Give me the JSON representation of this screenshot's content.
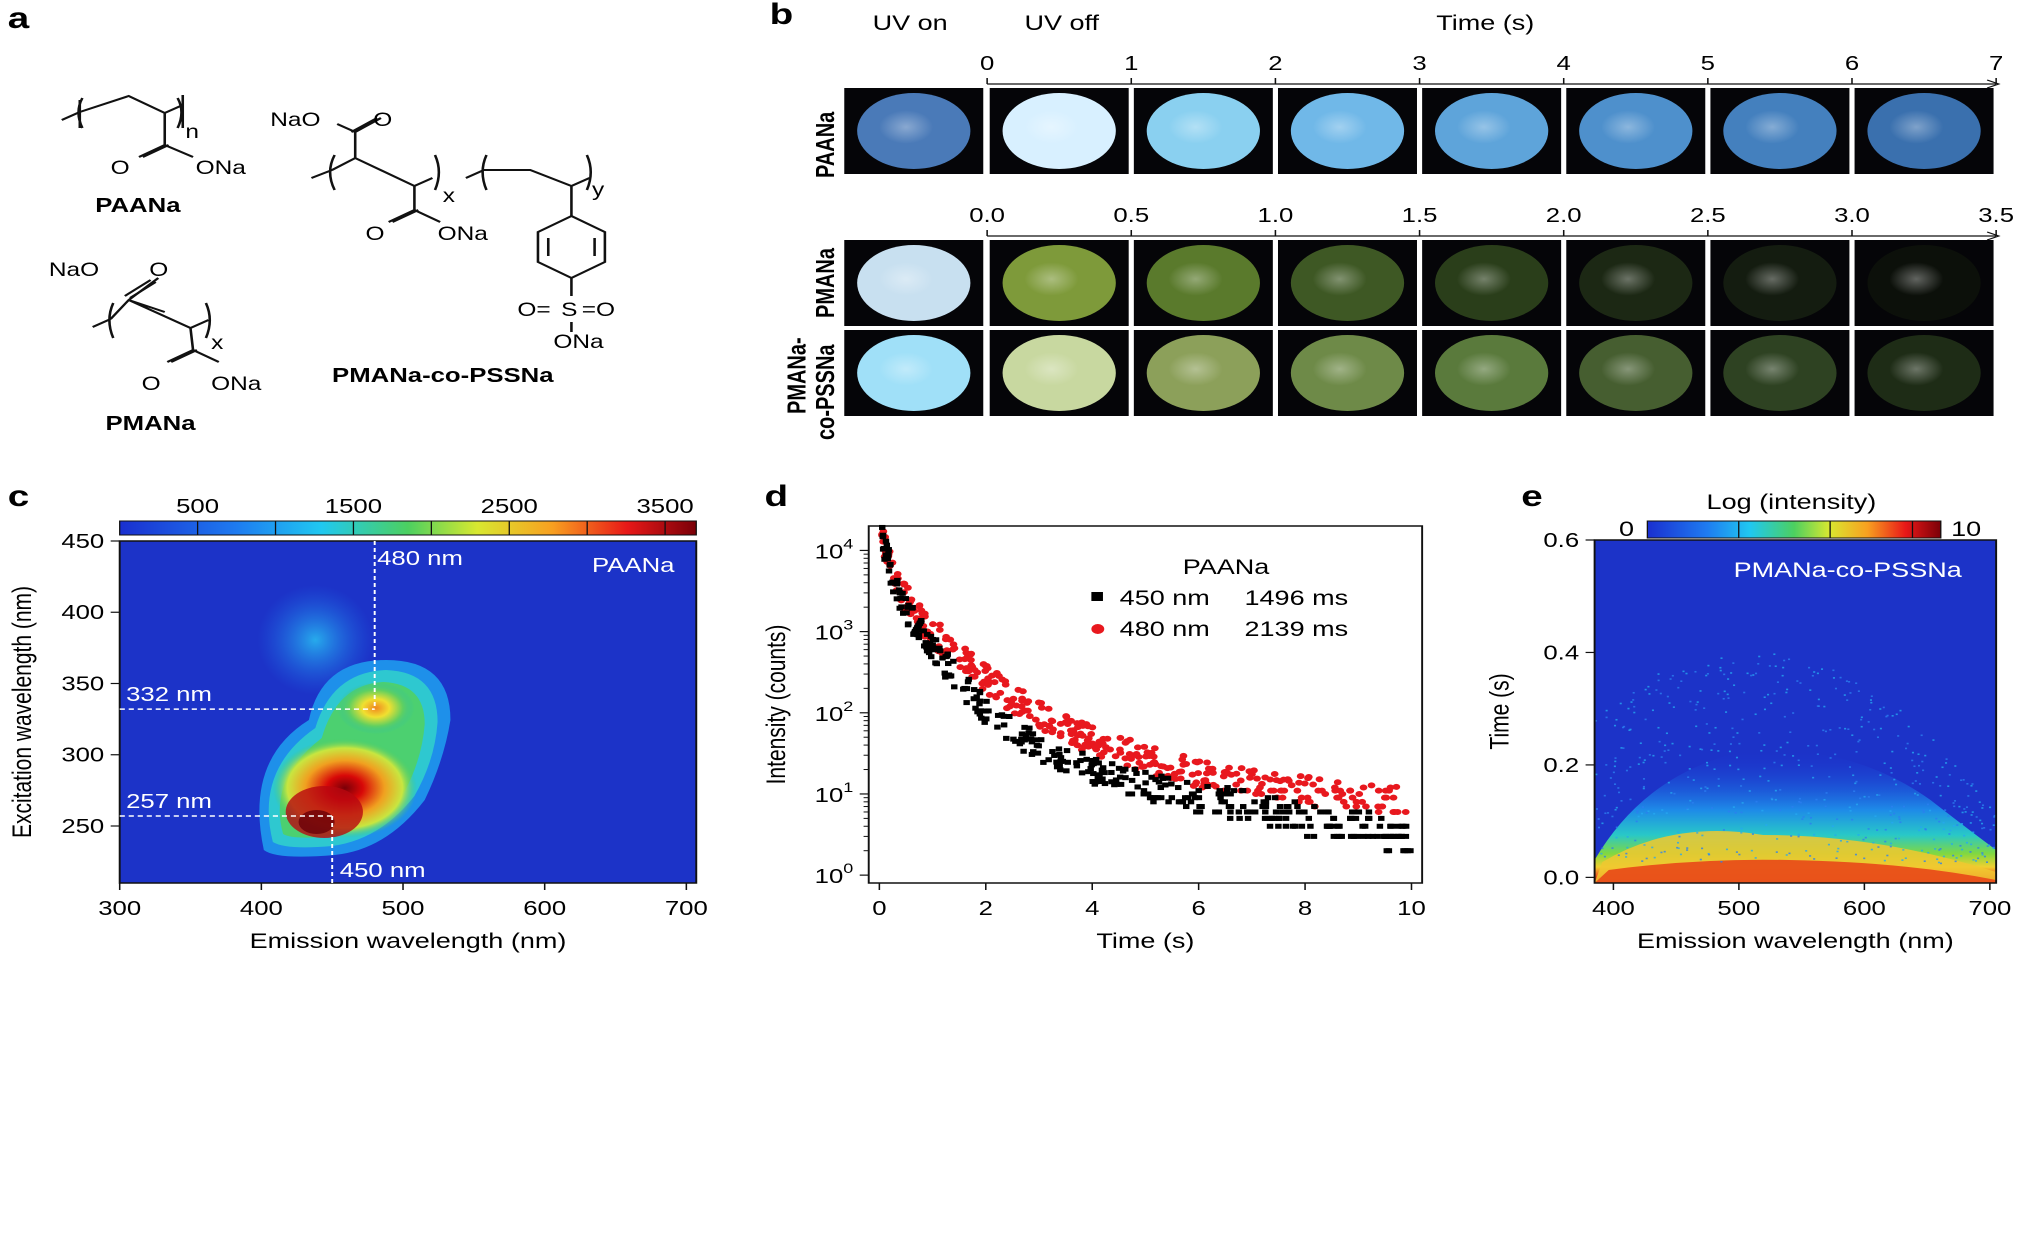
{
  "panels": {
    "a": {
      "letter": "a",
      "paana": {
        "name": "PAANa",
        "n": "n",
        "carboxy": "O",
        "na_ester": "ONa"
      },
      "pmana": {
        "name": "PMANa",
        "x": "x",
        "nao": "NaO",
        "o_top": "O",
        "o_bottom": "O",
        "ona": "ONa"
      },
      "copoly": {
        "name": "PMANa-co-PSSNa",
        "nao": "NaO",
        "o_top": "O",
        "o_low": "O",
        "ona": "ONa",
        "x": "x",
        "y": "y",
        "s": "S",
        "so_left": "O=",
        "so_right": "=O",
        "s_ona": "ONa"
      }
    },
    "b": {
      "letter": "b",
      "uv_on": "UV on",
      "uv_off": "UV off",
      "time_label": "Time (s)",
      "top_ticks": [
        "0",
        "1",
        "2",
        "3",
        "4",
        "5",
        "6",
        "7"
      ],
      "mid_ticks": [
        "0.0",
        "0.5",
        "1.0",
        "1.5",
        "2.0",
        "2.5",
        "3.0",
        "3.5"
      ],
      "row_labels": {
        "r1": "PAANa",
        "r2": "PMANa",
        "r3a": "PMANa-",
        "r3b": "co-PSSNa"
      },
      "row_colors": {
        "r1": [
          "#4a7ab8",
          "#d8f0ff",
          "#8ad0f0",
          "#70b8e8",
          "#5ea4da",
          "#4e90cc",
          "#4480be",
          "#3a70ae"
        ],
        "r2": [
          "#c8e0f0",
          "#7e9a3a",
          "#5a7a2c",
          "#3e5824",
          "#2a3e1a",
          "#1c2814",
          "#141c10",
          "#0c100a"
        ],
        "r3": [
          "#a0e0f8",
          "#c8d8a0",
          "#8ca05a",
          "#6e8a48",
          "#5a7a3c",
          "#465e30",
          "#2e4222",
          "#1e2c16"
        ]
      }
    },
    "c": {
      "letter": "c",
      "colorbar_ticks": [
        "500",
        "1500",
        "2500",
        "3500"
      ],
      "inset": "PAANa",
      "ann": {
        "em480": "480 nm",
        "ex332": "332 nm",
        "ex257": "257 nm",
        "em450": "450 nm"
      }
    },
    "d": {
      "letter": "d",
      "inset_title": "PAANa",
      "legend": [
        {
          "wl": "450 nm",
          "tau": "1496 ms",
          "color": "#000000"
        },
        {
          "wl": "480 nm",
          "tau": "2139 ms",
          "color": "#e8181e"
        }
      ]
    },
    "e": {
      "letter": "e",
      "colorbar_title": "Log (intensity)",
      "cb_min": "0",
      "cb_max": "10",
      "inset": "PMANa-co-PSSNa"
    }
  },
  "chart_data": [
    {
      "type": "heatmap",
      "panel": "c",
      "xlabel": "Emission wavelength (nm)",
      "ylabel": "Excitation wavelength (nm)",
      "xlim": [
        300,
        707
      ],
      "ylim": [
        210,
        450
      ],
      "xticks": [
        "300",
        "400",
        "500",
        "600",
        "700"
      ],
      "yticks": [
        "250",
        "300",
        "350",
        "400",
        "450"
      ],
      "colorbar_range": [
        0,
        3700
      ],
      "peaks": [
        {
          "emission_nm": 450,
          "excitation_nm": 257,
          "intensity": 3500
        },
        {
          "emission_nm": 480,
          "excitation_nm": 332,
          "intensity": 2600
        }
      ]
    },
    {
      "type": "scatter",
      "panel": "d",
      "yscale": "log",
      "xlabel": "Time (s)",
      "ylabel": "Intensity (counts)",
      "xlim": [
        -0.2,
        10.2
      ],
      "ylim": [
        0.8,
        20000
      ],
      "xticks": [
        "0",
        "2",
        "4",
        "6",
        "8",
        "10"
      ],
      "yticks": [
        {
          "base": "10",
          "exp": "0"
        },
        {
          "base": "10",
          "exp": "1"
        },
        {
          "base": "10",
          "exp": "2"
        },
        {
          "base": "10",
          "exp": "3"
        },
        {
          "base": "10",
          "exp": "4"
        }
      ],
      "series": [
        {
          "name": "450 nm",
          "lifetime_ms": 1496,
          "x": [
            0.05,
            0.3,
            0.6,
            1,
            1.5,
            2,
            2.5,
            3,
            4,
            5,
            6,
            7,
            8,
            9,
            10
          ],
          "y": [
            15000,
            3500,
            1500,
            600,
            250,
            110,
            60,
            38,
            20,
            13,
            9,
            7,
            5,
            4,
            3
          ]
        },
        {
          "name": "480 nm",
          "lifetime_ms": 2139,
          "x": [
            0.05,
            0.3,
            0.6,
            1,
            1.5,
            2,
            2.5,
            3,
            4,
            5,
            6,
            7,
            8,
            9,
            10
          ],
          "y": [
            16000,
            4200,
            2000,
            1000,
            500,
            260,
            150,
            95,
            45,
            27,
            18,
            14,
            11,
            9,
            8
          ]
        }
      ]
    },
    {
      "type": "heatmap",
      "panel": "e",
      "xlabel": "Emission wavelength (nm)",
      "ylabel": "Time (s)",
      "xlim": [
        385,
        705
      ],
      "ylim": [
        -0.01,
        0.6
      ],
      "xticks": [
        "400",
        "500",
        "600",
        "700"
      ],
      "yticks": [
        "0.0",
        "0.2",
        "0.4",
        "0.6"
      ],
      "colorbar_range": [
        0,
        10
      ]
    }
  ]
}
